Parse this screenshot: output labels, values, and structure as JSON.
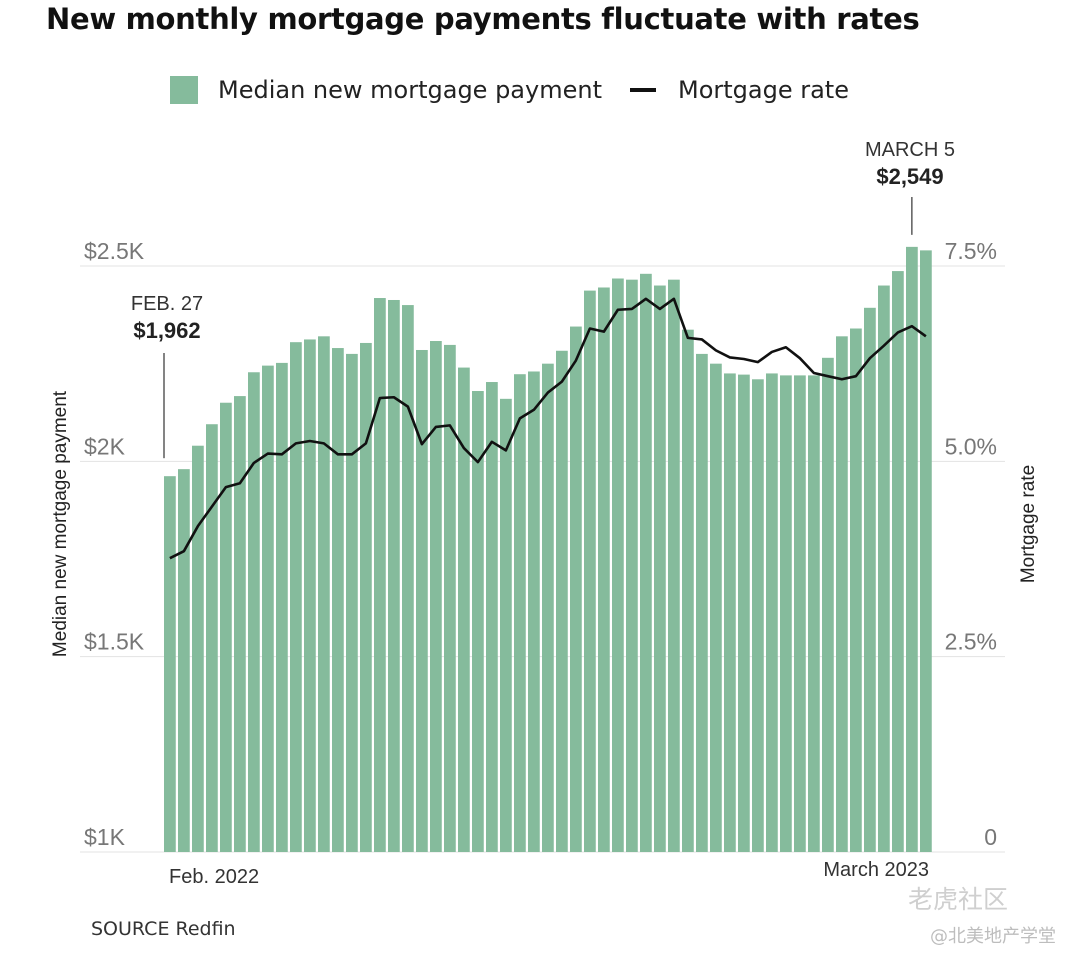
{
  "title": "New monthly mortgage payments fluctuate with rates",
  "legend": {
    "bar_label": "Median new mortgage payment",
    "line_label": "Mortgage rate"
  },
  "source": "SOURCE Redfin",
  "watermark": {
    "brand": "老虎社区",
    "handle": "@北美地产学堂"
  },
  "colors": {
    "bar": "#85bb9c",
    "line": "#111111",
    "grid": "#e3e3e3",
    "axis_text": "#777777"
  },
  "chart_data": {
    "type": "bar",
    "ylabel": "Median new mortgage payment",
    "y2label": "Mortgage rate",
    "ylim": [
      1000,
      2500
    ],
    "y2lim": [
      0,
      7.5
    ],
    "y_ticks": [
      "$1K",
      "$1.5K",
      "$2K",
      "$2.5K"
    ],
    "y_tick_values": [
      1000,
      1500,
      2000,
      2500
    ],
    "y2_ticks": [
      "0",
      "2.5%",
      "5.0%",
      "7.5%"
    ],
    "y2_tick_values": [
      0,
      2.5,
      5.0,
      7.5
    ],
    "x_start_label": "Feb. 2022",
    "x_end_label": "March 2023",
    "grid": true,
    "annotations": [
      {
        "label": "FEB. 27",
        "value": "$1,962"
      },
      {
        "label": "MARCH 5",
        "value": "$2,549"
      }
    ],
    "series": [
      {
        "name": "Median new mortgage payment",
        "type": "bar",
        "values": [
          1962,
          1980,
          2040,
          2095,
          2150,
          2167,
          2228,
          2245,
          2252,
          2305,
          2312,
          2320,
          2290,
          2275,
          2303,
          2418,
          2413,
          2400,
          2285,
          2308,
          2298,
          2240,
          2180,
          2203,
          2160,
          2223,
          2230,
          2250,
          2283,
          2345,
          2437,
          2445,
          2468,
          2465,
          2480,
          2450,
          2465,
          2337,
          2275,
          2250,
          2225,
          2222,
          2210,
          2225,
          2220,
          2220,
          2220,
          2265,
          2320,
          2340,
          2393,
          2450,
          2487,
          2549,
          2540
        ]
      },
      {
        "name": "Mortgage rate",
        "type": "line",
        "values": [
          3.76,
          3.85,
          4.17,
          4.42,
          4.67,
          4.72,
          4.98,
          5.1,
          5.09,
          5.23,
          5.26,
          5.23,
          5.09,
          5.09,
          5.23,
          5.81,
          5.82,
          5.7,
          5.22,
          5.44,
          5.46,
          5.17,
          4.99,
          5.25,
          5.14,
          5.55,
          5.66,
          5.88,
          6.02,
          6.29,
          6.7,
          6.66,
          6.94,
          6.95,
          7.08,
          6.95,
          7.08,
          6.58,
          6.56,
          6.42,
          6.33,
          6.31,
          6.27,
          6.4,
          6.46,
          6.32,
          6.13,
          6.09,
          6.05,
          6.09,
          6.32,
          6.48,
          6.65,
          6.73,
          6.6
        ]
      }
    ]
  }
}
